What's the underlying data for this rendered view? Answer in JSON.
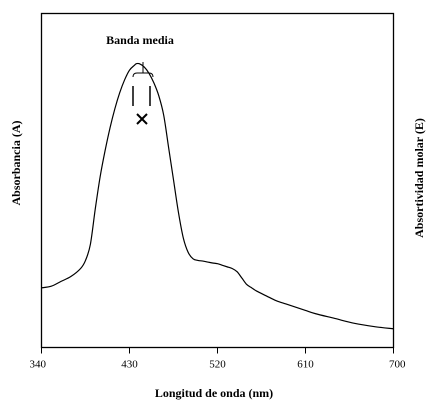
{
  "chart_data": {
    "type": "line",
    "title": "",
    "xlabel": "Longitud de onda (nm)",
    "ylabel": "Absorbancia (A)",
    "ylabel_right": "Absortividad molar (E)",
    "xlim": [
      340,
      700
    ],
    "ylim": [
      0,
      1
    ],
    "x_ticks": [
      340,
      430,
      520,
      610,
      700
    ],
    "x_tick_labels": [
      "340",
      "430",
      "520",
      "610",
      "700"
    ],
    "grid": false,
    "legend": "none",
    "series": [
      {
        "x": [
          340,
          350,
          360,
          370,
          380,
          385,
          390,
          395,
          400,
          405,
          410,
          415,
          420,
          425,
          430,
          435,
          437,
          440,
          445,
          450,
          455,
          460,
          465,
          470,
          475,
          480,
          485,
          490,
          495,
          500,
          505,
          510,
          515,
          520,
          525,
          530,
          535,
          540,
          545,
          550,
          555,
          560,
          570,
          580,
          590,
          600,
          610,
          620,
          640,
          660,
          680,
          700
        ],
        "y": [
          0.185,
          0.19,
          0.205,
          0.22,
          0.245,
          0.27,
          0.32,
          0.43,
          0.53,
          0.61,
          0.68,
          0.74,
          0.79,
          0.83,
          0.86,
          0.875,
          0.88,
          0.88,
          0.87,
          0.85,
          0.82,
          0.78,
          0.72,
          0.62,
          0.52,
          0.42,
          0.34,
          0.295,
          0.275,
          0.27,
          0.268,
          0.265,
          0.262,
          0.26,
          0.255,
          0.25,
          0.245,
          0.235,
          0.215,
          0.195,
          0.185,
          0.175,
          0.16,
          0.145,
          0.135,
          0.125,
          0.115,
          0.105,
          0.09,
          0.075,
          0.065,
          0.058
        ]
      }
    ],
    "annotations": [
      {
        "text": "Banda media",
        "x": 437,
        "y": 0.88
      }
    ]
  }
}
